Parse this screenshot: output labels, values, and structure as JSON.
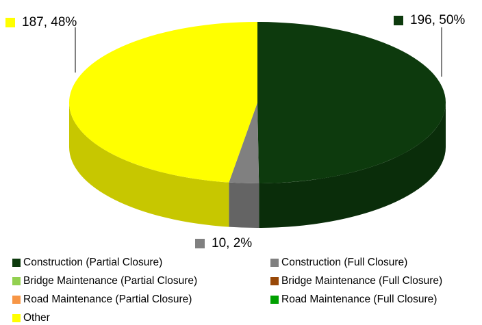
{
  "chart_data": {
    "type": "pie",
    "categories": [
      "Construction (Partial Closure)",
      "Construction (Full Closure)",
      "Bridge Maintenance (Partial Closure)",
      "Bridge Maintenance (Full Closure)",
      "Road Maintenance (Partial Closure)",
      "Road Maintenance (Full Closure)",
      "Other"
    ],
    "values": [
      196,
      10,
      0,
      0,
      0,
      0,
      187
    ],
    "value_labels": [
      "196, 50%",
      "10, 2%",
      null,
      null,
      null,
      null,
      "187, 48%"
    ],
    "colors": [
      "#0d3a0d",
      "#808080",
      "#92d050",
      "#984807",
      "#f79646",
      "#00a000",
      "#ffff00"
    ],
    "legend": "bottom"
  }
}
